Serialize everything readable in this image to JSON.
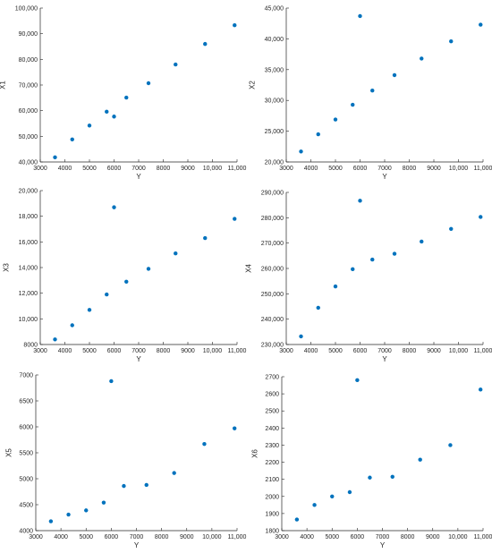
{
  "colors": {
    "marker": "#0072BD",
    "axis": "#262626",
    "background": "#ffffff"
  },
  "chart_data": [
    {
      "type": "scatter",
      "title": "",
      "xlabel": "Y",
      "ylabel": "X1",
      "grid": false,
      "xlim": [
        3000,
        11000
      ],
      "ylim": [
        40000,
        100000
      ],
      "xticks": [
        3000,
        4000,
        5000,
        6000,
        7000,
        8000,
        9000,
        10000,
        11000
      ],
      "xtick_labels": [
        "3000",
        "4000",
        "5000",
        "6000",
        "7000",
        "8000",
        "9000",
        "10,000",
        "11,000"
      ],
      "yticks": [
        40000,
        50000,
        60000,
        70000,
        80000,
        90000,
        100000
      ],
      "ytick_labels": [
        "40,000",
        "50,000",
        "60,000",
        "70,000",
        "80,000",
        "90,000",
        "100,000"
      ],
      "x": [
        3600,
        4300,
        5000,
        5700,
        6000,
        6500,
        7400,
        8500,
        9700,
        10900
      ],
      "y": [
        41800,
        48800,
        54200,
        59600,
        57700,
        65100,
        70700,
        78000,
        86000,
        93300
      ]
    },
    {
      "type": "scatter",
      "title": "",
      "xlabel": "Y",
      "ylabel": "X2",
      "grid": false,
      "xlim": [
        3000,
        11000
      ],
      "ylim": [
        20000,
        45000
      ],
      "xticks": [
        3000,
        4000,
        5000,
        6000,
        7000,
        8000,
        9000,
        10000,
        11000
      ],
      "xtick_labels": [
        "3000",
        "4000",
        "5000",
        "6000",
        "7000",
        "8000",
        "9000",
        "10,000",
        "11,000"
      ],
      "yticks": [
        20000,
        25000,
        30000,
        35000,
        40000,
        45000
      ],
      "ytick_labels": [
        "20,000",
        "25,000",
        "30,000",
        "35,000",
        "40,000",
        "45,000"
      ],
      "x": [
        3600,
        4300,
        5000,
        5700,
        6000,
        6500,
        7400,
        8500,
        9700,
        10900
      ],
      "y": [
        21700,
        24500,
        26900,
        29300,
        43700,
        31600,
        34100,
        36800,
        39600,
        42300
      ]
    },
    {
      "type": "scatter",
      "title": "",
      "xlabel": "Y",
      "ylabel": "X3",
      "grid": false,
      "xlim": [
        3000,
        11000
      ],
      "ylim": [
        8000,
        20000
      ],
      "xticks": [
        3000,
        4000,
        5000,
        6000,
        7000,
        8000,
        9000,
        10000,
        11000
      ],
      "xtick_labels": [
        "3000",
        "4000",
        "5000",
        "6000",
        "7000",
        "8000",
        "9000",
        "10,000",
        "11,000"
      ],
      "yticks": [
        8000,
        10000,
        12000,
        14000,
        16000,
        18000,
        20000
      ],
      "ytick_labels": [
        "8000",
        "10,000",
        "12,000",
        "14,000",
        "16,000",
        "18,000",
        "20,000"
      ],
      "x": [
        3600,
        4300,
        5000,
        5700,
        6000,
        6500,
        7400,
        8500,
        9700,
        10900
      ],
      "y": [
        8400,
        9500,
        10700,
        11900,
        18700,
        12900,
        13900,
        15100,
        16300,
        17800
      ]
    },
    {
      "type": "scatter",
      "title": "",
      "xlabel": "Y",
      "ylabel": "X4",
      "grid": false,
      "xlim": [
        3000,
        11000
      ],
      "ylim": [
        230000,
        290000
      ],
      "xticks": [
        3000,
        4000,
        5000,
        6000,
        7000,
        8000,
        9000,
        10000,
        11000
      ],
      "xtick_labels": [
        "3000",
        "4000",
        "5000",
        "6000",
        "7000",
        "8000",
        "9000",
        "10,000",
        "11,000"
      ],
      "yticks": [
        230000,
        240000,
        250000,
        260000,
        270000,
        280000,
        290000
      ],
      "ytick_labels": [
        "230,000",
        "240,000",
        "250,000",
        "260,000",
        "270,000",
        "280,000",
        "290,000"
      ],
      "x": [
        3600,
        4300,
        5000,
        5700,
        6000,
        6500,
        7400,
        8500,
        9700,
        10900
      ],
      "y": [
        233200,
        244500,
        252900,
        259700,
        286700,
        263500,
        265800,
        270600,
        275600,
        280300
      ]
    },
    {
      "type": "scatter",
      "title": "",
      "xlabel": "Y",
      "ylabel": "X5",
      "grid": false,
      "xlim": [
        3000,
        11000
      ],
      "ylim": [
        4000,
        7000
      ],
      "xticks": [
        3000,
        4000,
        5000,
        6000,
        7000,
        8000,
        9000,
        10000,
        11000
      ],
      "xtick_labels": [
        "3000",
        "4000",
        "5000",
        "6000",
        "7000",
        "8000",
        "9000",
        "10,000",
        "11,000"
      ],
      "yticks": [
        4000,
        4500,
        5000,
        5500,
        6000,
        6500,
        7000
      ],
      "ytick_labels": [
        "4000",
        "4500",
        "5000",
        "5500",
        "6000",
        "6500",
        "7000"
      ],
      "x": [
        3600,
        4300,
        5000,
        5700,
        6000,
        6500,
        7400,
        8500,
        9700,
        10900
      ],
      "y": [
        4180,
        4310,
        4390,
        4540,
        6880,
        4860,
        4880,
        5110,
        5670,
        5970
      ]
    },
    {
      "type": "scatter",
      "title": "",
      "xlabel": "Y",
      "ylabel": "X6",
      "grid": false,
      "xlim": [
        3000,
        11000
      ],
      "ylim": [
        1800,
        2700
      ],
      "xticks": [
        3000,
        4000,
        5000,
        6000,
        7000,
        8000,
        9000,
        10000,
        11000
      ],
      "xtick_labels": [
        "3000",
        "4000",
        "5000",
        "6000",
        "7000",
        "8000",
        "9000",
        "10,000",
        "11,000"
      ],
      "yticks": [
        1800,
        1900,
        2000,
        2100,
        2200,
        2300,
        2400,
        2500,
        2600,
        2700
      ],
      "ytick_labels": [
        "1800",
        "1900",
        "2000",
        "2100",
        "2200",
        "2300",
        "2400",
        "2500",
        "2600",
        "2700"
      ],
      "x": [
        3600,
        4300,
        5000,
        5700,
        6000,
        6500,
        7400,
        8500,
        9700,
        10900
      ],
      "y": [
        1865,
        1950,
        2000,
        2025,
        2680,
        2110,
        2115,
        2215,
        2300,
        2625
      ]
    }
  ]
}
